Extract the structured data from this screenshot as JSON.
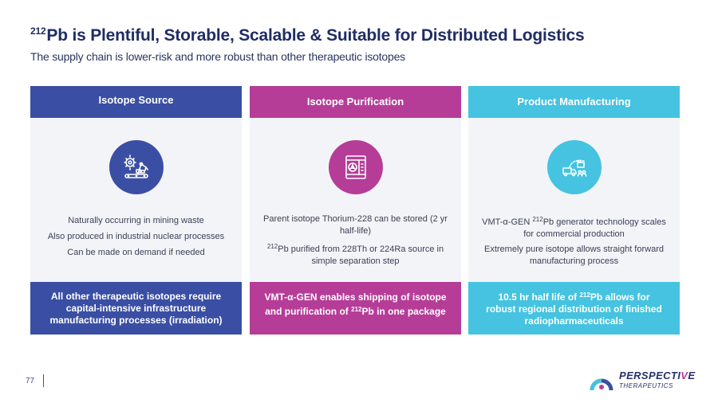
{
  "header": {
    "title_sup": "212",
    "title": "Pb is Plentiful, Storable, Scalable & Suitable for Distributed Logistics",
    "subtitle": "The supply chain is lower-risk and more robust than other therapeutic isotopes"
  },
  "columns": [
    {
      "heading": "Isotope Source",
      "icon": "factory-robot-arm-icon",
      "lines": [
        "Naturally occurring in mining waste",
        "Also produced in industrial nuclear processes",
        "Can be made on demand if needed"
      ],
      "footer": "All other therapeutic isotopes require capital-intensive infrastructure manufacturing processes (irradiation)"
    },
    {
      "heading": "Isotope Purification",
      "icon": "radioactive-container-icon",
      "line1": "Parent isotope Thorium-228 can be stored (2 yr half-life)",
      "line2_sup": "212",
      "line2": "Pb purified from 228Th or 224Ra source in simple separation step",
      "footer_a": "VMT-α-GEN enables shipping of isotope and purification of ",
      "footer_sup": "212",
      "footer_b": "Pb in one package"
    },
    {
      "heading": "Product Manufacturing",
      "icon": "delivery-distribution-icon",
      "line1_a": "VMT-α-GEN ",
      "line1_sup": "212",
      "line1_b": "Pb generator technology scales for commercial production",
      "line2": "Extremely pure isotope allows straight forward manufacturing process",
      "footer_a": "10.5 hr half life of ",
      "footer_sup": "212",
      "footer_b": "Pb allows for robust regional distribution of finished radiopharmaceuticals"
    }
  ],
  "footer": {
    "page_number": "77",
    "logo_main": "PERSPECTI",
    "logo_accent": "V",
    "logo_end": "E",
    "logo_sub": "THERAPEUTICS"
  },
  "colors": {
    "blue": "#3a4fa3",
    "magenta": "#b53d98",
    "cyan": "#45c3e0",
    "navy": "#1f2d63"
  }
}
